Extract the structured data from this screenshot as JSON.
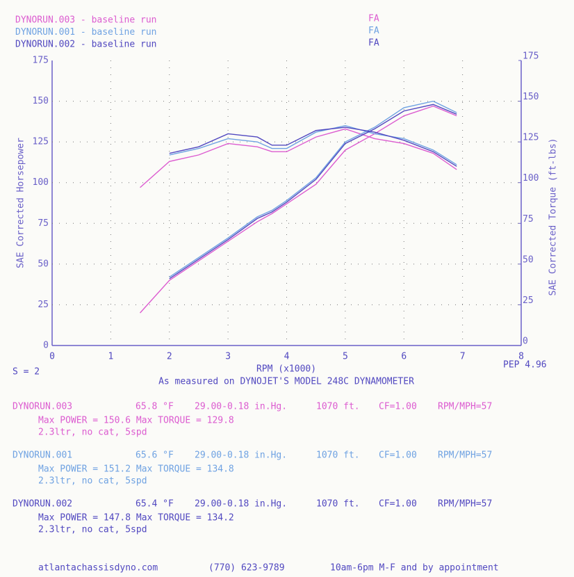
{
  "chart_data": {
    "type": "line",
    "title": "As measured on DYNOJET'S MODEL 248C DYNAMOMETER",
    "x_label": "RPM (x1000)",
    "y_label": "SAE Corrected Horsepower",
    "y2_label": "SAE Corrected Torque (ft-lbs)",
    "smoothing": "S = 2",
    "version": "PEP 4.96",
    "x": [
      1.5,
      2,
      2.5,
      3,
      3.5,
      3.75,
      4,
      4.5,
      5,
      5.5,
      6,
      6.5,
      6.9
    ],
    "xlim": [
      0,
      8
    ],
    "xticks": [
      0,
      1,
      2,
      3,
      4,
      5,
      6,
      7,
      8
    ],
    "ylim": [
      0,
      175
    ],
    "yticks": [
      0,
      25,
      50,
      75,
      100,
      125,
      150,
      175
    ],
    "y2lim": [
      0,
      175
    ],
    "y2ticks": [
      0,
      25,
      50,
      75,
      100,
      125,
      150,
      175
    ],
    "grid": true,
    "series": [
      {
        "name": "DYNORUN.003 - baseline run",
        "operator": "FA",
        "color": "#dc5cd0",
        "values": [
          20,
          40,
          52,
          64,
          76,
          81,
          87,
          99,
          120,
          130,
          141,
          147,
          141
        ],
        "torque": {
          "axis": "y2",
          "values": [
            97,
            113,
            117,
            124,
            122,
            119,
            119,
            128,
            133,
            127,
            124,
            118,
            108
          ]
        }
      },
      {
        "name": "DYNORUN.001 - baseline run",
        "operator": "FA",
        "color": "#6fa2e2",
        "values": [
          null,
          42,
          54,
          66,
          79,
          83,
          89,
          103,
          125,
          134,
          146,
          150,
          143
        ],
        "torque": {
          "axis": "y2",
          "values": [
            null,
            117,
            121,
            127,
            125,
            121,
            121,
            131,
            135,
            130,
            127,
            120,
            111
          ]
        }
      },
      {
        "name": "DYNORUN.002 - baseline run",
        "operator": "FA",
        "color": "#5148c0",
        "values": [
          null,
          41,
          53,
          65,
          78,
          82,
          88,
          102,
          124,
          133,
          144,
          148,
          142
        ],
        "torque": {
          "axis": "y2",
          "values": [
            null,
            118,
            122,
            130,
            128,
            123,
            123,
            132,
            134,
            131,
            126,
            119,
            110
          ]
        }
      }
    ],
    "runs": [
      {
        "name": "DYNORUN.003",
        "temp": "65.8 °F",
        "baro": "29.00-0.18 in.Hg.",
        "alt": "1070 ft.",
        "cf": "CF=1.00",
        "ratio": "RPM/MPH=57",
        "max": "Max POWER = 150.6  Max TORQUE = 129.8",
        "config": "2.3ltr, no cat, 5spd"
      },
      {
        "name": "DYNORUN.001",
        "temp": "65.6 °F",
        "baro": "29.00-0.18 in.Hg.",
        "alt": "1070 ft.",
        "cf": "CF=1.00",
        "ratio": "RPM/MPH=57",
        "max": "Max POWER = 151.2  Max TORQUE = 134.8",
        "config": "2.3ltr, no cat, 5spd"
      },
      {
        "name": "DYNORUN.002",
        "temp": "65.4 °F",
        "baro": "29.00-0.18 in.Hg.",
        "alt": "1070 ft.",
        "cf": "CF=1.00",
        "ratio": "RPM/MPH=57",
        "max": "Max POWER = 147.8  Max TORQUE = 134.2",
        "config": "2.3ltr, no cat, 5spd"
      }
    ]
  },
  "footer": {
    "website": "atlantachassisdyno.com",
    "phone": "(770) 623-9789",
    "hours": "10am-6pm M-F and by appointment"
  }
}
